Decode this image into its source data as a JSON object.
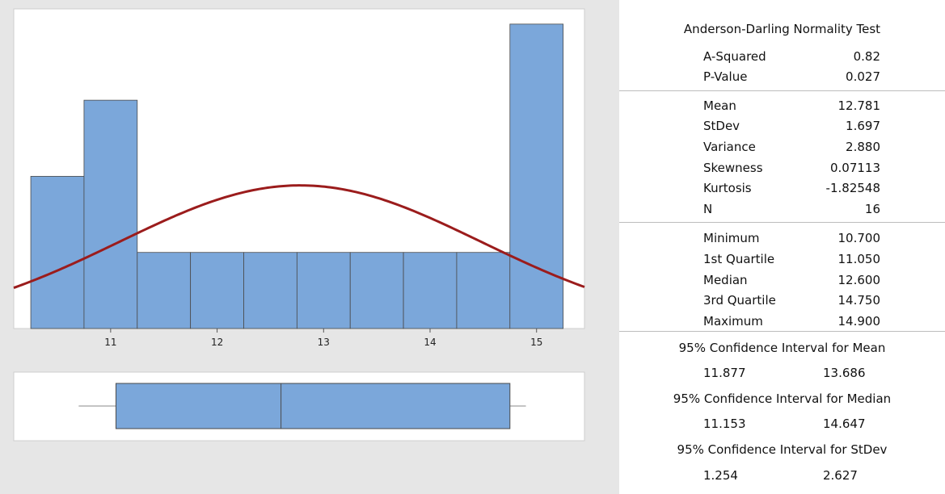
{
  "chart_data": {
    "type": "bar",
    "title": "",
    "xlabel": "",
    "ylabel": "",
    "bins": [
      {
        "start": 10.25,
        "end": 10.75,
        "count": 2
      },
      {
        "start": 10.75,
        "end": 11.25,
        "count": 3
      },
      {
        "start": 11.25,
        "end": 11.75,
        "count": 1
      },
      {
        "start": 11.75,
        "end": 12.25,
        "count": 1
      },
      {
        "start": 12.25,
        "end": 12.75,
        "count": 1
      },
      {
        "start": 12.75,
        "end": 13.25,
        "count": 1
      },
      {
        "start": 13.25,
        "end": 13.75,
        "count": 1
      },
      {
        "start": 13.75,
        "end": 14.25,
        "count": 1
      },
      {
        "start": 14.25,
        "end": 14.75,
        "count": 1
      },
      {
        "start": 14.75,
        "end": 15.25,
        "count": 4
      }
    ],
    "x_ticks": [
      "11",
      "12",
      "13",
      "14",
      "15"
    ],
    "x_tick_values": [
      11,
      12,
      13,
      14,
      15
    ],
    "xlim": [
      10.09,
      15.45
    ],
    "ylim": [
      0,
      4.2
    ],
    "normal_fit": {
      "mean": 12.781,
      "stdev": 1.697,
      "n": 16,
      "bin_width": 0.5
    },
    "boxplot": {
      "whisker_low": 10.7,
      "q1": 11.05,
      "median": 12.6,
      "q3": 14.75,
      "whisker_high": 14.9
    },
    "colors": {
      "bar": "#7ba7da",
      "curve": "#9b1c1c",
      "edge": "#4a4a4a"
    }
  },
  "stats": {
    "test_title": "Anderson-Darling Normality Test",
    "a_squared": {
      "label": "A-Squared",
      "value": "0.82"
    },
    "p_value": {
      "label": "P-Value",
      "value": "0.027"
    },
    "mean": {
      "label": "Mean",
      "value": "12.781"
    },
    "stdev": {
      "label": "StDev",
      "value": "1.697"
    },
    "variance": {
      "label": "Variance",
      "value": "2.880"
    },
    "skewness": {
      "label": "Skewness",
      "value": "0.07113"
    },
    "kurtosis": {
      "label": "Kurtosis",
      "value": "-1.82548"
    },
    "n": {
      "label": "N",
      "value": "16"
    },
    "minimum": {
      "label": "Minimum",
      "value": "10.700"
    },
    "q1": {
      "label": "1st Quartile",
      "value": "11.050"
    },
    "median": {
      "label": "Median",
      "value": "12.600"
    },
    "q3": {
      "label": "3rd Quartile",
      "value": "14.750"
    },
    "maximum": {
      "label": "Maximum",
      "value": "14.900"
    },
    "ci_mean": {
      "title": "95% Confidence Interval for Mean",
      "low": "11.877",
      "high": "13.686"
    },
    "ci_median": {
      "title": "95% Confidence Interval for Median",
      "low": "11.153",
      "high": "14.647"
    },
    "ci_stdev": {
      "title": "95% Confidence Interval for StDev",
      "low": "1.254",
      "high": "2.627"
    }
  }
}
